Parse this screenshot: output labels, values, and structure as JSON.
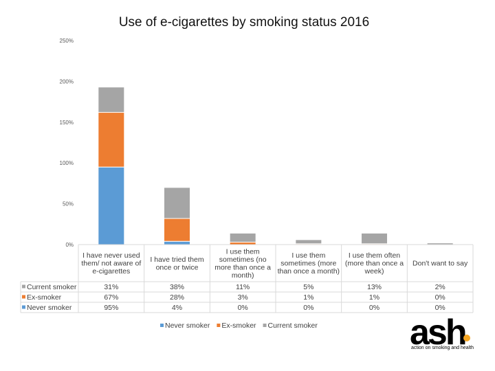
{
  "chart_data": {
    "type": "bar",
    "stacked": true,
    "title": "Use of e-cigarettes by smoking status 2016",
    "categories": [
      [
        "I have never used",
        "them/ not aware of",
        "e-cigarettes"
      ],
      [
        "I have tried them",
        "once or twice"
      ],
      [
        "I use them",
        "sometimes (no",
        "more than once a",
        "month)"
      ],
      [
        "I use them",
        "sometimes (more",
        "than once a month)"
      ],
      [
        "I use them often",
        "(more than once a",
        "week)"
      ],
      [
        "Don't want to say"
      ]
    ],
    "series": [
      {
        "name": "Never smoker",
        "values": [
          95,
          4,
          0,
          0,
          0,
          0
        ],
        "labels": [
          "95%",
          "4%",
          "0%",
          "0%",
          "0%",
          "0%"
        ],
        "color": "#5b9bd5"
      },
      {
        "name": "Ex-smoker",
        "values": [
          67,
          28,
          3,
          1,
          1,
          0
        ],
        "labels": [
          "67%",
          "28%",
          "3%",
          "1%",
          "1%",
          "0%"
        ],
        "color": "#ed7d31"
      },
      {
        "name": "Current smoker",
        "values": [
          31,
          38,
          11,
          5,
          13,
          2
        ],
        "labels": [
          "31%",
          "38%",
          "11%",
          "5%",
          "13%",
          "2%"
        ],
        "color": "#a5a5a5"
      }
    ],
    "table_row_order": [
      "Current smoker",
      "Ex-smoker",
      "Never smoker"
    ],
    "ylim": [
      0,
      250
    ],
    "yticks": [
      0,
      50,
      100,
      150,
      200,
      250
    ],
    "ytick_labels": [
      "0%",
      "50%",
      "100%",
      "150%",
      "200%",
      "250%"
    ],
    "grid": false,
    "legend_position": "bottom"
  },
  "logo": {
    "word": "ash",
    "tagline": "action on smoking and health",
    "dot_color": "#f5a623"
  }
}
